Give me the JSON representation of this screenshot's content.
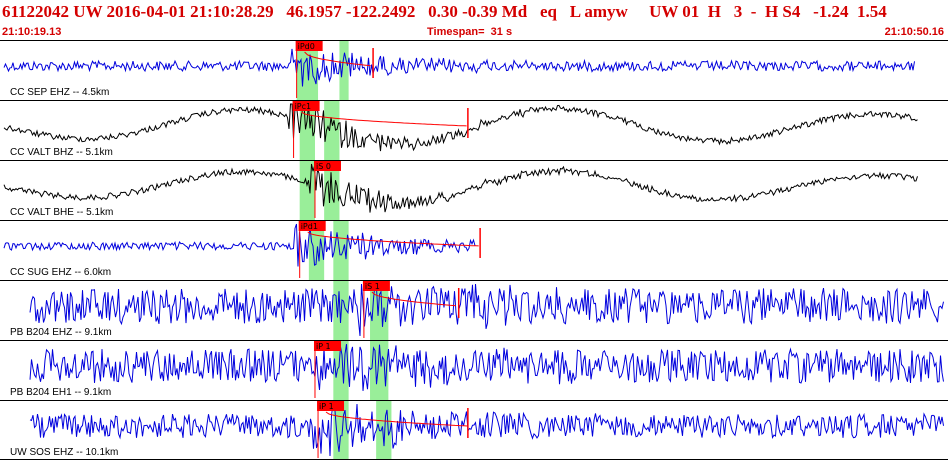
{
  "header": {
    "title": "61122042 UW 2016-04-01 21:10:28.29   46.1957 -122.2492   0.30 -0.39 Md   eq   L amyw     UW 01  H   3  -  H S4   -1.24  1.54",
    "start_time": "21:10:19.13",
    "timespan": "Timespan=  31 s",
    "end_time": "21:10:50.16"
  },
  "colors": {
    "trace_blue": "#0000dd",
    "trace_black": "#000000",
    "pick_red": "#ff0000",
    "window_green": "#99ee99",
    "text_red": "#d40000"
  },
  "chart_data": {
    "type": "line",
    "x_range_s": [
      0,
      31
    ],
    "traces": [
      {
        "label": "CC SEP EHZ -- 4.5km",
        "color": "blue",
        "pick": "iPd0",
        "pick_time_s": 9.7,
        "green_windows_s": [
          [
            9.7,
            10.4
          ],
          [
            11.1,
            11.4
          ]
        ],
        "coda_end_s": 12.2
      },
      {
        "label": "CC VALT BHZ -- 5.1km",
        "color": "black",
        "pick": "iPc1",
        "pick_time_s": 9.6,
        "green_windows_s": [
          [
            9.8,
            10.3
          ],
          [
            10.6,
            11.1
          ]
        ],
        "coda_end_s": 15.3
      },
      {
        "label": "CC VALT BHE -- 5.1km",
        "color": "black",
        "pick": "iS 0",
        "pick_time_s": 10.3,
        "green_windows_s": [
          [
            9.8,
            10.3
          ],
          [
            10.6,
            11.1
          ]
        ],
        "coda_end_s": null
      },
      {
        "label": "CC SUG EHZ -- 6.0km",
        "color": "blue",
        "pick": "iPd1",
        "pick_time_s": 9.8,
        "green_windows_s": [
          [
            10.1,
            10.6
          ],
          [
            10.9,
            11.4
          ]
        ],
        "coda_end_s": 15.7
      },
      {
        "label": "PB B204 EHZ -- 9.1km",
        "color": "blue",
        "pick": "iS 1",
        "pick_time_s": 11.9,
        "green_windows_s": [
          [
            10.9,
            11.4
          ],
          [
            12.1,
            12.7
          ]
        ],
        "coda_end_s": 15.0
      },
      {
        "label": "PB B204 EH1 -- 9.1km",
        "color": "blue",
        "pick": "iP 1",
        "pick_time_s": 10.3,
        "green_windows_s": [
          [
            10.9,
            11.4
          ],
          [
            12.1,
            12.7
          ]
        ],
        "coda_end_s": null
      },
      {
        "label": "UW SOS EHZ -- 10.1km",
        "color": "blue",
        "pick": "iP 1",
        "pick_time_s": 10.4,
        "green_windows_s": [
          [
            10.9,
            11.4
          ],
          [
            12.3,
            12.8
          ]
        ],
        "coda_end_s": 15.3
      }
    ]
  }
}
